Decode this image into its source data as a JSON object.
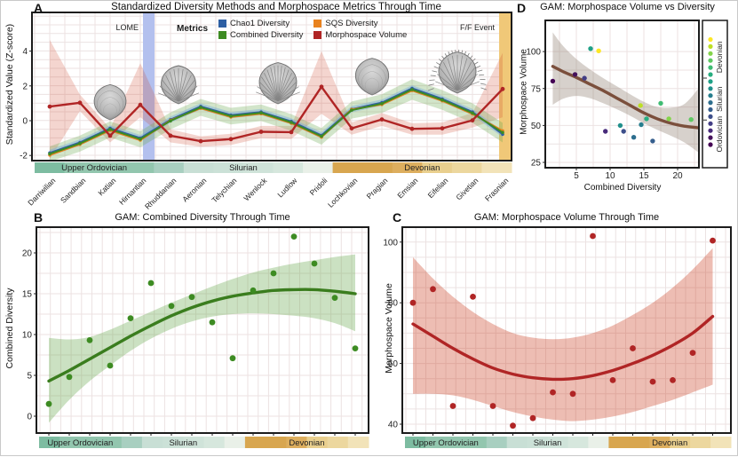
{
  "panel_labels": {
    "a": "A",
    "b": "B",
    "c": "C",
    "d": "D"
  },
  "panel_a": {
    "title": "Standardized Diversity Methods and Morphospace Metrics Through Time",
    "y_label": "Standardized Value (Z-score)",
    "legend_title": "Metrics",
    "lome_label": "LOME",
    "ff_label": "F/F Event",
    "lome_band_color": "#b3c0ee",
    "ff_band_color": "#f0c878"
  },
  "panel_b": {
    "title": "GAM: Combined Diversity Through Time",
    "y_label": "Combined Diversity"
  },
  "panel_c": {
    "title": "GAM: Morphospace Volume Through Time",
    "y_label": "Morphospace Volume"
  },
  "panel_d": {
    "title": "GAM: Morphospace Volume vs Diversity",
    "x_label": "Combined Diversity",
    "y_label": "Morphospace Volume",
    "legend_groups": [
      "Ordovician",
      "Silurian",
      "Devonian"
    ]
  },
  "stages": [
    "Darriwilian",
    "Sandbian",
    "Katian",
    "Hirnantian",
    "Rhuddanian",
    "Aeronian",
    "Telychian",
    "Wenlock",
    "Ludlow",
    "Pridoli",
    "Lochkovian",
    "Pragian",
    "Emsian",
    "Eifelian",
    "Givetian",
    "Frasnian"
  ],
  "periods": [
    {
      "name": "Upper Ordovician",
      "from": 0,
      "to": 3
    },
    {
      "name": "Silurian",
      "from": 4,
      "to": 9
    },
    {
      "name": "Devonian",
      "from": 10,
      "to": 15
    }
  ],
  "stage_bar_colors": [
    "#7dbca1",
    "#92c6ae",
    "#92c6ae",
    "#92c6ae",
    "#a8cfc0",
    "#c8dfd5",
    "#cbe1d7",
    "#cfe3d9",
    "#d6e7dd",
    "#e9f0e8",
    "#d8a64f",
    "#d8a64f",
    "#ddae5e",
    "#e9cf8e",
    "#ecd79e",
    "#f2e3b8"
  ],
  "stage_point_colors": [
    "#440154",
    "#46135c",
    "#472a7a",
    "#433e85",
    "#3d4e8a",
    "#355e8d",
    "#2d6e8e",
    "#277e8e",
    "#21908c",
    "#1fa187",
    "#28ae80",
    "#3fbc73",
    "#5ec962",
    "#84d44b",
    "#bddf26",
    "#fde725"
  ],
  "fossil_illustrations": [
    "smooth brachiopod",
    "ribbed brachiopod",
    "round ribbed brachiopod",
    "smooth brachiopod",
    "spiny brachiopod"
  ],
  "chart_data": [
    {
      "id": "A",
      "type": "line",
      "title": "Standardized Diversity Methods and Morphospace Metrics Through Time",
      "xlabel": "",
      "ylabel": "Standardized Value (Z-score)",
      "ylim": [
        -2.6,
        5.2
      ],
      "y_ticks": [
        4,
        2,
        0,
        -2
      ],
      "grid": true,
      "legend_position": "top-center",
      "categories": [
        "Darriwilian",
        "Sandbian",
        "Katian",
        "Hirnantian",
        "Rhuddanian",
        "Aeronian",
        "Telychian",
        "Wenlock",
        "Ludlow",
        "Pridoli",
        "Lochkovian",
        "Pragian",
        "Emsian",
        "Eifelian",
        "Givetian",
        "Frasnian"
      ],
      "series": [
        {
          "name": "Chao1 Diversity",
          "color": "#2e5fa3",
          "values": [
            -1.85,
            -1.25,
            -0.44,
            -1.0,
            0.06,
            0.82,
            0.32,
            0.5,
            -0.04,
            -0.84,
            0.66,
            1.04,
            1.86,
            1.25,
            0.5,
            -0.78
          ]
        },
        {
          "name": "Combined Diversity",
          "color": "#3d8b22",
          "values": [
            -1.91,
            -1.31,
            -0.5,
            -1.06,
            -0.01,
            0.76,
            0.26,
            0.45,
            -0.1,
            -0.9,
            0.6,
            0.98,
            1.79,
            1.19,
            0.44,
            -0.68
          ]
        },
        {
          "name": "SQS Diversity",
          "color": "#e8821e",
          "values": [
            -1.98,
            -1.36,
            -0.56,
            -1.12,
            0.02,
            0.71,
            0.21,
            0.4,
            -0.15,
            -0.95,
            0.65,
            0.93,
            1.73,
            1.14,
            0.39,
            -0.58
          ]
        },
        {
          "name": "Morphospace Volume",
          "color": "#b02525",
          "values": [
            0.81,
            1.03,
            -0.86,
            0.91,
            -0.86,
            -1.18,
            -1.06,
            -0.64,
            -0.66,
            1.95,
            -0.44,
            0.07,
            -0.47,
            -0.44,
            0.02,
            1.82
          ]
        }
      ],
      "ribbons": [
        {
          "series": "Morphospace Volume",
          "color": "#cc4125",
          "opacity": 0.22,
          "lo": [
            -2.2,
            0.55,
            -1.25,
            0.2,
            -1.25,
            -1.5,
            -1.4,
            -1.0,
            -1.05,
            0.4,
            -0.8,
            -0.3,
            -0.8,
            -0.8,
            -0.4,
            0.2
          ],
          "hi": [
            4.65,
            1.5,
            -0.45,
            3.3,
            -0.5,
            -0.9,
            -0.75,
            -0.3,
            -0.3,
            4.0,
            -0.1,
            0.45,
            -0.15,
            -0.1,
            0.45,
            3.9
          ]
        },
        {
          "series": "Combined Diversity",
          "color": "#6aa84f",
          "opacity": 0.3,
          "lo": [
            -2.35,
            -1.78,
            -0.97,
            -1.53,
            -0.5,
            0.28,
            -0.22,
            -0.02,
            -0.58,
            -1.38,
            0.12,
            0.45,
            1.2,
            0.62,
            -0.12,
            -1.25
          ],
          "hi": [
            -1.48,
            -0.85,
            -0.04,
            -0.6,
            0.48,
            1.25,
            0.74,
            0.93,
            0.38,
            -0.42,
            1.1,
            1.52,
            2.38,
            1.76,
            1.0,
            -0.12
          ]
        },
        {
          "series": "Chao1 Diversity",
          "color": "#6fa8dc",
          "opacity": 0.4,
          "lo": [
            -2.03,
            -1.43,
            -0.62,
            -1.18,
            -0.12,
            0.64,
            0.14,
            0.32,
            -0.22,
            -1.02,
            0.48,
            0.86,
            1.68,
            1.07,
            0.32,
            -0.96
          ],
          "hi": [
            -1.67,
            -1.07,
            -0.26,
            -0.82,
            0.24,
            1.0,
            0.5,
            0.68,
            0.14,
            -0.66,
            0.84,
            1.22,
            2.04,
            1.43,
            0.68,
            -0.6
          ]
        }
      ],
      "events": [
        {
          "label": "LOME",
          "at": "Hirnantian"
        },
        {
          "label": "F/F Event",
          "at": "Frasnian"
        }
      ]
    },
    {
      "id": "B",
      "type": "scatter",
      "title": "GAM: Combined Diversity Through Time",
      "xlabel": "",
      "ylabel": "Combined Diversity",
      "ylim": [
        -2,
        23.5
      ],
      "y_ticks": [
        0,
        5,
        10,
        15,
        20
      ],
      "grid": true,
      "categories": [
        "Darriwilian",
        "Sandbian",
        "Katian",
        "Hirnantian",
        "Rhuddanian",
        "Aeronian",
        "Telychian",
        "Wenlock",
        "Ludlow",
        "Pridoli",
        "Lochkovian",
        "Pragian",
        "Emsian",
        "Eifelian",
        "Givetian",
        "Frasnian"
      ],
      "values": [
        1.5,
        4.8,
        9.3,
        6.2,
        12,
        16.3,
        13.5,
        14.6,
        11.5,
        7.1,
        15.4,
        17.5,
        22,
        18.7,
        14.5,
        8.3
      ],
      "gam_fit": [
        4.3,
        5.6,
        7.0,
        8.4,
        9.8,
        11.1,
        12.3,
        13.3,
        14.1,
        14.7,
        15.1,
        15.4,
        15.5,
        15.5,
        15.3,
        15.0
      ],
      "ci_lo": [
        -0.8,
        2.0,
        4.3,
        6.2,
        8.0,
        9.5,
        10.7,
        11.6,
        12.2,
        12.5,
        12.6,
        12.5,
        12.3,
        12.0,
        11.4,
        10.4
      ],
      "ci_hi": [
        9.6,
        9.4,
        9.7,
        10.6,
        11.7,
        12.8,
        13.9,
        14.9,
        15.9,
        16.8,
        17.6,
        18.2,
        18.7,
        19.1,
        19.5,
        19.8
      ],
      "point_color": "#3d8b22",
      "line_color": "#3a7d1e",
      "ribbon_color": "#6aa84f"
    },
    {
      "id": "C",
      "type": "scatter",
      "title": "GAM: Morphospace Volume Through Time",
      "xlabel": "",
      "ylabel": "Morphospace Volume",
      "ylim": [
        36,
        105
      ],
      "y_ticks": [
        40,
        60,
        80,
        100
      ],
      "grid": true,
      "categories": [
        "Darriwilian",
        "Sandbian",
        "Katian",
        "Hirnantian",
        "Rhuddanian",
        "Aeronian",
        "Telychian",
        "Wenlock",
        "Ludlow",
        "Pridoli",
        "Lochkovian",
        "Pragian",
        "Emsian",
        "Eifelian",
        "Givetian",
        "Frasnian"
      ],
      "values": [
        80,
        84.5,
        46,
        82,
        46,
        39.5,
        42,
        50.5,
        50,
        102,
        54.5,
        65,
        54,
        54.5,
        63.5,
        100.5
      ],
      "gam_fit": [
        73,
        69,
        65,
        61.5,
        58.5,
        56.5,
        55.3,
        54.8,
        55,
        56,
        57.7,
        60,
        62.7,
        66,
        70,
        75.5
      ],
      "ci_lo": [
        50,
        50,
        49.5,
        48,
        46,
        44,
        42.5,
        41.5,
        41,
        41.5,
        42.5,
        44,
        46,
        48,
        50.5,
        53
      ],
      "ci_hi": [
        95,
        88,
        82,
        77,
        73,
        70,
        68.5,
        68,
        68.5,
        70,
        72.5,
        76,
        80,
        85,
        91,
        98
      ],
      "point_color": "#b02525",
      "line_color": "#b02525",
      "ribbon_color": "#cc4125"
    },
    {
      "id": "D",
      "type": "scatter",
      "title": "GAM: Morphospace Volume vs Diversity",
      "xlabel": "Combined Diversity",
      "ylabel": "Morphospace Volume",
      "xlim": [
        0.5,
        23.5
      ],
      "ylim": [
        22,
        112
      ],
      "x_ticks": [
        5,
        10,
        15,
        20
      ],
      "y_ticks": [
        25,
        50,
        75,
        100
      ],
      "grid": true,
      "point_stages": [
        "Darriwilian",
        "Sandbian",
        "Katian",
        "Hirnantian",
        "Rhuddanian",
        "Aeronian",
        "Telychian",
        "Wenlock",
        "Ludlow",
        "Pridoli",
        "Lochkovian",
        "Pragian",
        "Emsian",
        "Eifelian",
        "Givetian",
        "Frasnian"
      ],
      "x": [
        1.5,
        4.8,
        9.3,
        6.2,
        12,
        16.3,
        13.5,
        14.6,
        11.5,
        7.1,
        15.4,
        17.5,
        22,
        18.7,
        14.5,
        8.3
      ],
      "y": [
        80,
        84.5,
        46,
        82,
        46,
        39.5,
        42,
        50.5,
        50,
        102,
        54.5,
        65,
        54,
        54.5,
        63.5,
        100.5
      ],
      "gam_x": [
        1.5,
        3,
        5,
        7,
        9,
        11,
        13,
        15,
        17,
        19,
        21,
        23
      ],
      "gam_y": [
        90,
        86.5,
        82.5,
        78,
        73.5,
        68.5,
        63.5,
        58.5,
        54.5,
        51.5,
        49.5,
        48.5
      ],
      "ci_lo": [
        64,
        68,
        70,
        68.5,
        65,
        61,
        56.5,
        51.5,
        47,
        43,
        38.5,
        32
      ],
      "ci_hi": [
        113,
        104,
        95,
        88,
        82,
        76.5,
        71,
        66,
        62.5,
        62,
        64.5,
        74.5
      ],
      "line_color": "#7b4f3c",
      "ribbon_color": "#8d7b6e",
      "legend_position": "right-strip"
    }
  ]
}
